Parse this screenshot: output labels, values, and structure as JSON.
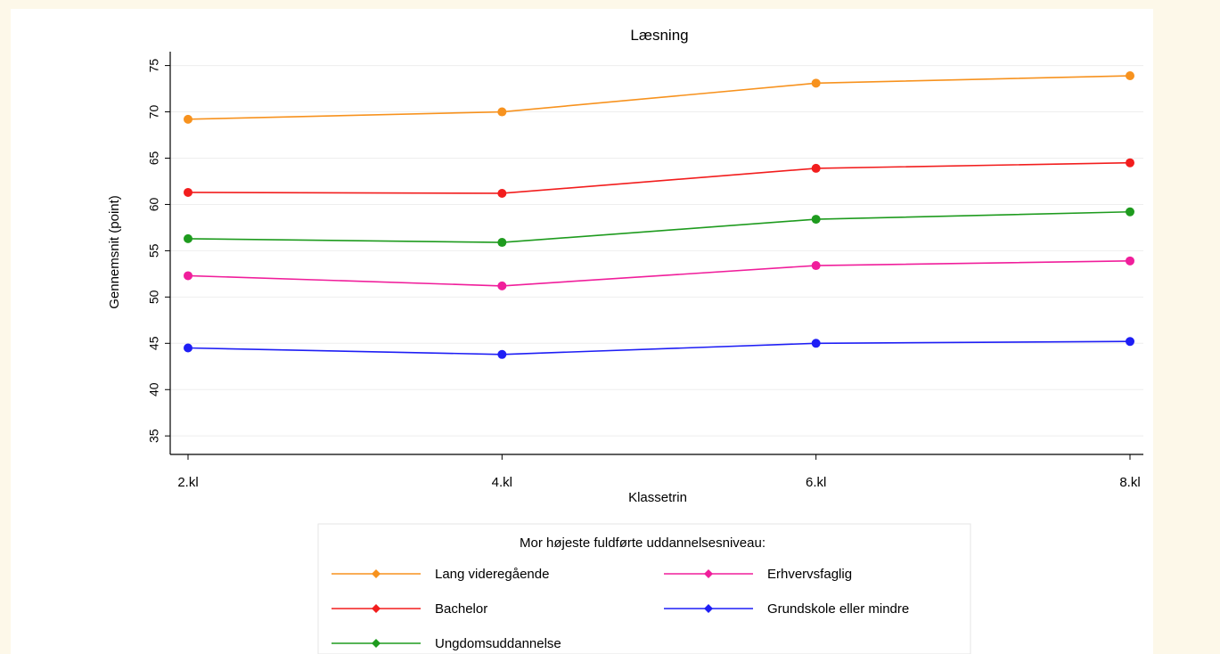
{
  "chart_data": {
    "type": "line",
    "title": "Læsning",
    "xlabel": "Klassetrin",
    "ylabel": "Gennemsnit (point)",
    "categories": [
      "2.kl",
      "4.kl",
      "6.kl",
      "8.kl"
    ],
    "ylim": [
      33,
      76.5
    ],
    "yticks": [
      35,
      40,
      45,
      50,
      55,
      60,
      65,
      70,
      75
    ],
    "grid": true,
    "legend_title": "Mor højeste fuldførte uddannelsesniveau:",
    "legend_position": "bottom",
    "series": [
      {
        "name": "Lang videregående",
        "color": "#f7921e",
        "values": [
          69.2,
          70.0,
          73.1,
          73.9
        ]
      },
      {
        "name": "Bachelor",
        "color": "#f21d1d",
        "values": [
          61.3,
          61.2,
          63.9,
          64.5
        ]
      },
      {
        "name": "Ungdomsuddannelse",
        "color": "#1e9b1e",
        "values": [
          56.3,
          55.9,
          58.4,
          59.2
        ]
      },
      {
        "name": "Erhvervsfaglig",
        "color": "#f01e9b",
        "values": [
          52.3,
          51.2,
          53.4,
          53.9
        ]
      },
      {
        "name": "Grundskole eller mindre",
        "color": "#1e1ef5",
        "values": [
          44.5,
          43.8,
          45.0,
          45.2
        ]
      }
    ]
  }
}
